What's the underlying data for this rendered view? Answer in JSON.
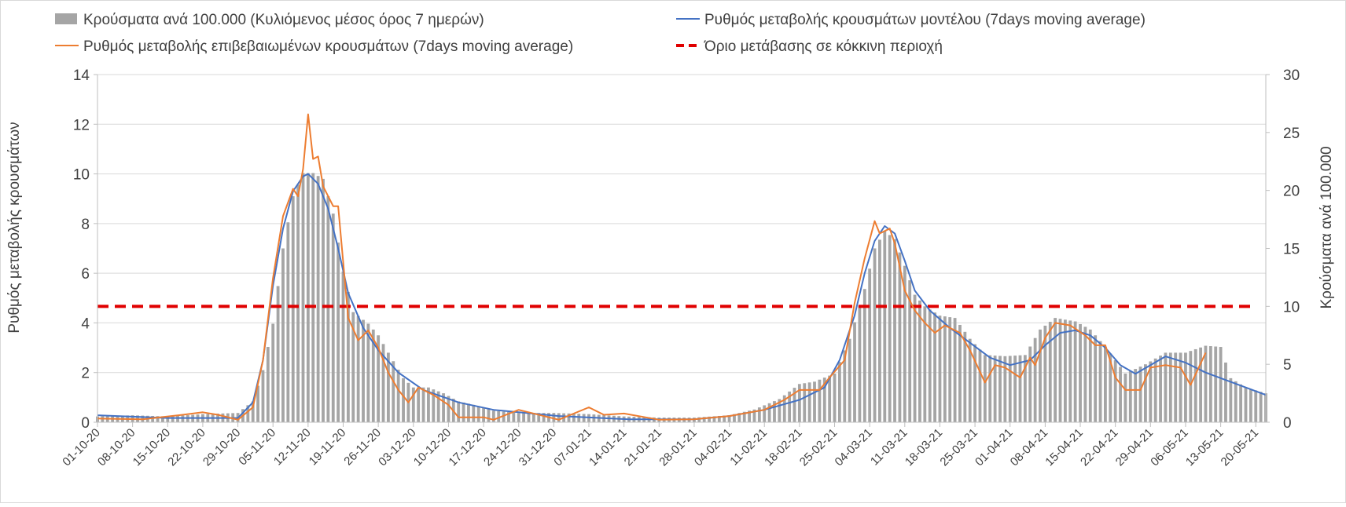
{
  "chart_data": {
    "type": "bar+line",
    "title": "",
    "ylabel_left": "Ρυθμός μεταβολής κρουσμάτων",
    "ylabel_right": "Κρούσματα ανά 100.000",
    "ylim_left": [
      0,
      14
    ],
    "yticks_left": [
      0,
      2,
      4,
      6,
      8,
      10,
      12,
      14
    ],
    "ylim_right": [
      0,
      30
    ],
    "yticks_right": [
      0,
      5,
      10,
      15,
      20,
      25,
      30
    ],
    "grid": true,
    "legend_position": "top",
    "x_start": "01-10-20",
    "x_end": "22-05-21",
    "x_tick_labels": [
      "01-10-20",
      "08-10-20",
      "15-10-20",
      "22-10-20",
      "29-10-20",
      "05-11-20",
      "12-11-20",
      "19-11-20",
      "26-11-20",
      "03-12-20",
      "10-12-20",
      "17-12-20",
      "24-12-20",
      "31-12-20",
      "07-01-21",
      "14-01-21",
      "21-01-21",
      "28-01-21",
      "04-02-21",
      "11-02-21",
      "18-02-21",
      "25-02-21",
      "04-03-21",
      "11-03-21",
      "18-03-21",
      "25-03-21",
      "01-04-21",
      "08-04-21",
      "15-04-21",
      "22-04-21",
      "29-04-21",
      "06-05-21",
      "13-05-21",
      "20-05-21"
    ],
    "series": [
      {
        "name": "Κρούσματα ανά 100.000 (Κυλιόμενος μέσος όρος 7 ημερών)",
        "kind": "bar",
        "axis": "right",
        "color": "#a5a5a5",
        "points": [
          [
            "01-10-20",
            0.5
          ],
          [
            "08-10-20",
            0.6
          ],
          [
            "15-10-20",
            0.5
          ],
          [
            "22-10-20",
            0.7
          ],
          [
            "29-10-20",
            0.8
          ],
          [
            "01-11-20",
            1.8
          ],
          [
            "03-11-20",
            4.5
          ],
          [
            "05-11-20",
            8.5
          ],
          [
            "07-11-20",
            15
          ],
          [
            "09-11-20",
            19.5
          ],
          [
            "11-11-20",
            21.5
          ],
          [
            "13-11-20",
            21.5
          ],
          [
            "15-11-20",
            21
          ],
          [
            "17-11-20",
            18
          ],
          [
            "19-11-20",
            13
          ],
          [
            "21-11-20",
            9.5
          ],
          [
            "24-11-20",
            8.5
          ],
          [
            "26-11-20",
            7.5
          ],
          [
            "28-11-20",
            6
          ],
          [
            "01-12-20",
            3.8
          ],
          [
            "03-12-20",
            3
          ],
          [
            "06-12-20",
            3
          ],
          [
            "09-12-20",
            2.5
          ],
          [
            "12-12-20",
            1.8
          ],
          [
            "15-12-20",
            1.5
          ],
          [
            "19-12-20",
            1
          ],
          [
            "24-12-20",
            0.8
          ],
          [
            "31-12-20",
            0.8
          ],
          [
            "07-01-21",
            0.7
          ],
          [
            "14-01-21",
            0.5
          ],
          [
            "21-01-21",
            0.4
          ],
          [
            "28-01-21",
            0.4
          ],
          [
            "04-02-21",
            0.6
          ],
          [
            "09-02-21",
            1.1
          ],
          [
            "14-02-21",
            2
          ],
          [
            "18-02-21",
            3.3
          ],
          [
            "21-02-21",
            3.5
          ],
          [
            "25-02-21",
            4.2
          ],
          [
            "28-02-21",
            7.2
          ],
          [
            "03-03-21",
            11.5
          ],
          [
            "05-03-21",
            15
          ],
          [
            "07-03-21",
            16.5
          ],
          [
            "09-03-21",
            15.8
          ],
          [
            "11-03-21",
            13.5
          ],
          [
            "13-03-21",
            11
          ],
          [
            "15-03-21",
            10
          ],
          [
            "18-03-21",
            9.2
          ],
          [
            "21-03-21",
            9
          ],
          [
            "24-03-21",
            7.2
          ],
          [
            "27-03-21",
            5.8
          ],
          [
            "31-03-21",
            5.7
          ],
          [
            "04-04-21",
            5.8
          ],
          [
            "07-04-21",
            8
          ],
          [
            "10-04-21",
            9
          ],
          [
            "14-04-21",
            8.7
          ],
          [
            "17-04-21",
            8
          ],
          [
            "20-04-21",
            6.5
          ],
          [
            "24-04-21",
            4.2
          ],
          [
            "28-04-21",
            5
          ],
          [
            "02-05-21",
            6
          ],
          [
            "06-05-21",
            6
          ],
          [
            "10-05-21",
            6.6
          ],
          [
            "13-05-21",
            6.5
          ],
          [
            "15-05-21",
            3.8
          ],
          [
            "18-05-21",
            3
          ],
          [
            "22-05-21",
            2.5
          ]
        ]
      },
      {
        "name": "Ρυθμός μεταβολής κρουσμάτων μοντέλου (7days moving average)",
        "kind": "line",
        "axis": "left",
        "color": "#4472c4",
        "points": [
          [
            "01-10-20",
            0.28
          ],
          [
            "15-10-20",
            0.17
          ],
          [
            "29-10-20",
            0.17
          ],
          [
            "01-11-20",
            0.8
          ],
          [
            "03-11-20",
            2.5
          ],
          [
            "05-11-20",
            5.5
          ],
          [
            "07-11-20",
            7.8
          ],
          [
            "09-11-20",
            9.3
          ],
          [
            "11-11-20",
            9.9
          ],
          [
            "12-11-20",
            10
          ],
          [
            "14-11-20",
            9.6
          ],
          [
            "16-11-20",
            8.6
          ],
          [
            "18-11-20",
            7
          ],
          [
            "20-11-20",
            5.2
          ],
          [
            "23-11-20",
            3.8
          ],
          [
            "26-11-20",
            2.9
          ],
          [
            "30-11-20",
            2
          ],
          [
            "05-12-20",
            1.3
          ],
          [
            "12-12-20",
            0.8
          ],
          [
            "19-12-20",
            0.5
          ],
          [
            "01-01-21",
            0.25
          ],
          [
            "15-01-21",
            0.12
          ],
          [
            "28-01-21",
            0.12
          ],
          [
            "04-02-21",
            0.25
          ],
          [
            "11-02-21",
            0.5
          ],
          [
            "18-02-21",
            0.9
          ],
          [
            "23-02-21",
            1.4
          ],
          [
            "26-02-21",
            2.5
          ],
          [
            "01-03-21",
            4.3
          ],
          [
            "03-03-21",
            6
          ],
          [
            "05-03-21",
            7.3
          ],
          [
            "07-03-21",
            7.9
          ],
          [
            "09-03-21",
            7.6
          ],
          [
            "11-03-21",
            6.5
          ],
          [
            "13-03-21",
            5.3
          ],
          [
            "16-03-21",
            4.5
          ],
          [
            "20-03-21",
            3.8
          ],
          [
            "24-03-21",
            3.2
          ],
          [
            "28-03-21",
            2.6
          ],
          [
            "01-04-21",
            2.3
          ],
          [
            "05-04-21",
            2.5
          ],
          [
            "08-04-21",
            3.1
          ],
          [
            "11-04-21",
            3.6
          ],
          [
            "14-04-21",
            3.7
          ],
          [
            "17-04-21",
            3.5
          ],
          [
            "20-04-21",
            3.0
          ],
          [
            "23-04-21",
            2.3
          ],
          [
            "26-04-21",
            1.95
          ],
          [
            "29-04-21",
            2.3
          ],
          [
            "02-05-21",
            2.65
          ],
          [
            "06-05-21",
            2.4
          ],
          [
            "10-05-21",
            2.0
          ],
          [
            "14-05-21",
            1.7
          ],
          [
            "18-05-21",
            1.4
          ],
          [
            "22-05-21",
            1.1
          ]
        ]
      },
      {
        "name": "Ρυθμός μεταβολής επιβεβαιωμένων κρουσμάτων (7days moving average)",
        "kind": "line",
        "axis": "left",
        "color": "#ed7d31",
        "points": [
          [
            "01-10-20",
            0.15
          ],
          [
            "10-10-20",
            0.12
          ],
          [
            "18-10-20",
            0.3
          ],
          [
            "22-10-20",
            0.4
          ],
          [
            "25-10-20",
            0.3
          ],
          [
            "29-10-20",
            0.1
          ],
          [
            "01-11-20",
            0.6
          ],
          [
            "03-11-20",
            2.5
          ],
          [
            "05-11-20",
            5.8
          ],
          [
            "07-11-20",
            8.3
          ],
          [
            "09-11-20",
            9.4
          ],
          [
            "10-11-20",
            9.1
          ],
          [
            "11-11-20",
            10.2
          ],
          [
            "12-11-20",
            12.4
          ],
          [
            "13-11-20",
            10.6
          ],
          [
            "14-11-20",
            10.7
          ],
          [
            "15-11-20",
            9.5
          ],
          [
            "17-11-20",
            8.7
          ],
          [
            "18-11-20",
            8.7
          ],
          [
            "20-11-20",
            4.2
          ],
          [
            "22-11-20",
            3.3
          ],
          [
            "24-11-20",
            3.7
          ],
          [
            "26-11-20",
            3.0
          ],
          [
            "28-11-20",
            2.0
          ],
          [
            "30-11-20",
            1.3
          ],
          [
            "02-12-20",
            0.8
          ],
          [
            "04-12-20",
            1.4
          ],
          [
            "07-12-20",
            1.1
          ],
          [
            "10-12-20",
            0.7
          ],
          [
            "12-12-20",
            0.2
          ],
          [
            "17-12-20",
            0.2
          ],
          [
            "19-12-20",
            0.1
          ],
          [
            "24-12-20",
            0.5
          ],
          [
            "01-01-21",
            0.1
          ],
          [
            "07-01-21",
            0.6
          ],
          [
            "10-01-21",
            0.3
          ],
          [
            "14-01-21",
            0.35
          ],
          [
            "21-01-21",
            0.1
          ],
          [
            "28-01-21",
            0.12
          ],
          [
            "04-02-21",
            0.25
          ],
          [
            "11-02-21",
            0.5
          ],
          [
            "15-02-21",
            0.9
          ],
          [
            "18-02-21",
            1.3
          ],
          [
            "22-02-21",
            1.3
          ],
          [
            "24-02-21",
            1.8
          ],
          [
            "27-02-21",
            2.5
          ],
          [
            "01-03-21",
            4.8
          ],
          [
            "03-03-21",
            6.6
          ],
          [
            "05-03-21",
            8.1
          ],
          [
            "06-03-21",
            7.6
          ],
          [
            "08-03-21",
            7.8
          ],
          [
            "09-03-21",
            7.2
          ],
          [
            "11-03-21",
            5.3
          ],
          [
            "13-03-21",
            4.5
          ],
          [
            "15-03-21",
            4.0
          ],
          [
            "17-03-21",
            3.6
          ],
          [
            "19-03-21",
            3.9
          ],
          [
            "22-03-21",
            3.6
          ],
          [
            "24-03-21",
            2.9
          ],
          [
            "27-03-21",
            1.6
          ],
          [
            "29-03-21",
            2.3
          ],
          [
            "31-03-21",
            2.2
          ],
          [
            "03-04-21",
            1.8
          ],
          [
            "05-04-21",
            2.6
          ],
          [
            "06-04-21",
            2.3
          ],
          [
            "08-04-21",
            3.4
          ],
          [
            "10-04-21",
            4.0
          ],
          [
            "13-04-21",
            3.9
          ],
          [
            "16-04-21",
            3.5
          ],
          [
            "18-04-21",
            3.1
          ],
          [
            "20-04-21",
            3.1
          ],
          [
            "22-04-21",
            1.8
          ],
          [
            "24-04-21",
            1.3
          ],
          [
            "27-04-21",
            1.3
          ],
          [
            "29-04-21",
            2.2
          ],
          [
            "02-05-21",
            2.3
          ],
          [
            "05-05-21",
            2.2
          ],
          [
            "07-05-21",
            1.5
          ],
          [
            "10-05-21",
            2.8
          ]
        ]
      },
      {
        "name": "Όριο μετάβασης σε κόκκινη περιοχή",
        "kind": "reference-line",
        "axis": "right",
        "color": "#e00000",
        "value": 10
      }
    ]
  }
}
